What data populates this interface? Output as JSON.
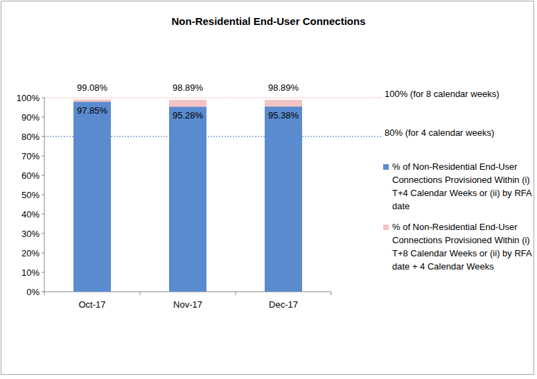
{
  "chart_data": {
    "type": "bar",
    "title": "Non-Residential End-User Connections",
    "categories": [
      "Oct-17",
      "Nov-17",
      "Dec-17"
    ],
    "series": [
      {
        "name": "% of Non-Residential End-User Connections Provisioned Within (i) T+4 Calendar Weeks or (ii) by RFA date",
        "color": "#5b8bcf",
        "values": [
          97.85,
          95.28,
          95.38
        ],
        "value_labels": [
          "97.85%",
          "95.28%",
          "95.38%"
        ]
      },
      {
        "name": "% of Non-Residential End-User Connections Provisioned Within (i) T+8 Calendar Weeks or (ii) by RFA date + 4 Calendar Weeks",
        "color": "#f2c4c4",
        "values": [
          99.08,
          98.89,
          98.89
        ],
        "value_labels": [
          "99.08%",
          "98.89%",
          "98.89%"
        ]
      }
    ],
    "ylim": [
      0,
      100
    ],
    "yticks": [
      {
        "value": 0,
        "label": "0%"
      },
      {
        "value": 10,
        "label": "10%"
      },
      {
        "value": 20,
        "label": "20%"
      },
      {
        "value": 30,
        "label": "30%"
      },
      {
        "value": 40,
        "label": "40%"
      },
      {
        "value": 50,
        "label": "50%"
      },
      {
        "value": 60,
        "label": "60%"
      },
      {
        "value": 70,
        "label": "70%"
      },
      {
        "value": 80,
        "label": "80%"
      },
      {
        "value": 90,
        "label": "90%"
      },
      {
        "value": 100,
        "label": "100%"
      }
    ],
    "annotations": [
      {
        "value": 100,
        "label": "100% (for 8 calendar weeks)",
        "color": "#e8a8a8"
      },
      {
        "value": 80,
        "label": "80% (for 4 calendar weeks)",
        "color": "#4472c4"
      }
    ],
    "stacked": false,
    "data_labels": true,
    "grid": false,
    "legend": "right"
  }
}
